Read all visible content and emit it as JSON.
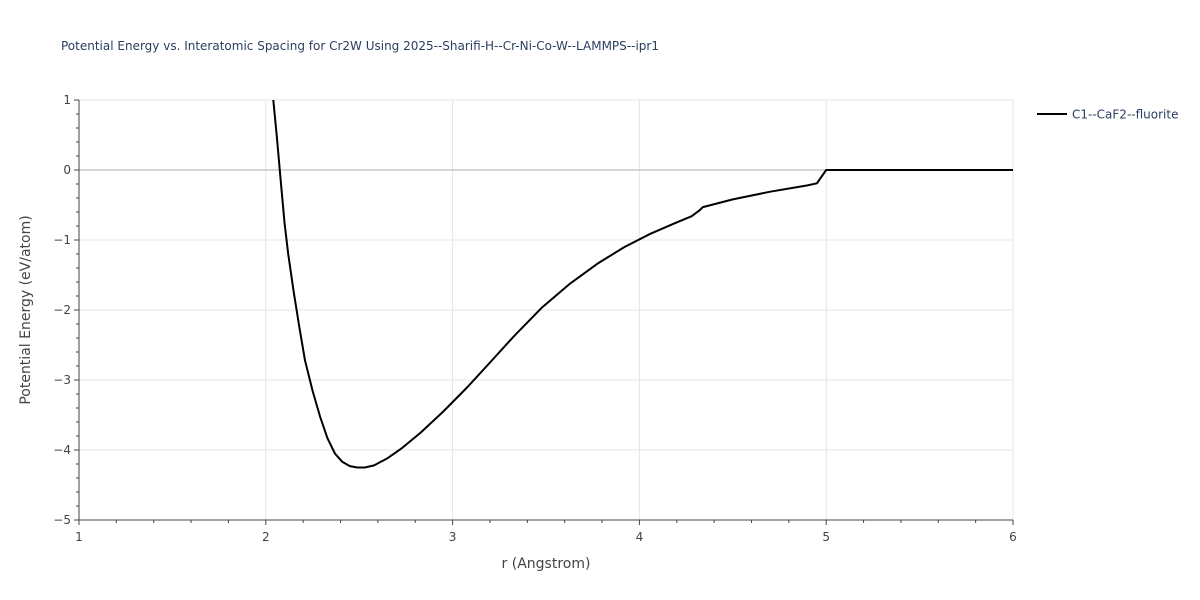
{
  "chart_data": {
    "type": "line",
    "title": "Potential Energy vs. Interatomic Spacing for Cr2W Using 2025--Sharifi-H--Cr-Ni-Co-W--LAMMPS--ipr1",
    "xlabel": "r (Angstrom)",
    "ylabel": "Potential Energy (eV/atom)",
    "xlim": [
      1,
      6
    ],
    "ylim": [
      -5,
      1
    ],
    "xticks": [
      1,
      2,
      3,
      4,
      5,
      6
    ],
    "yticks": [
      -5,
      -4,
      -3,
      -2,
      -1,
      0,
      1
    ],
    "xtick_labels": [
      "1",
      "2",
      "3",
      "4",
      "5",
      "6"
    ],
    "ytick_labels": [
      "−5",
      "−4",
      "−3",
      "−2",
      "−1",
      "0",
      "1"
    ],
    "grid": true,
    "legend_position": "top-right",
    "series": [
      {
        "name": "C1--CaF2--fluorite",
        "color": "#000000",
        "x": [
          2.04,
          2.06,
          2.08,
          2.1,
          2.12,
          2.15,
          2.18,
          2.21,
          2.25,
          2.29,
          2.33,
          2.37,
          2.41,
          2.45,
          2.49,
          2.53,
          2.58,
          2.65,
          2.73,
          2.83,
          2.95,
          3.08,
          3.2,
          3.33,
          3.48,
          3.63,
          3.78,
          3.92,
          4.06,
          4.19,
          4.28,
          4.32,
          4.34,
          4.5,
          4.7,
          4.9,
          4.95,
          5.0,
          5.3,
          5.6,
          6.0
        ],
        "y": [
          1.0,
          0.45,
          -0.15,
          -0.75,
          -1.2,
          -1.75,
          -2.25,
          -2.72,
          -3.15,
          -3.52,
          -3.83,
          -4.05,
          -4.17,
          -4.23,
          -4.25,
          -4.25,
          -4.22,
          -4.12,
          -3.97,
          -3.75,
          -3.45,
          -3.1,
          -2.75,
          -2.37,
          -1.96,
          -1.62,
          -1.33,
          -1.1,
          -0.91,
          -0.76,
          -0.66,
          -0.58,
          -0.53,
          -0.42,
          -0.31,
          -0.22,
          -0.19,
          0.0,
          0.0,
          0.0,
          0.0
        ]
      }
    ]
  }
}
